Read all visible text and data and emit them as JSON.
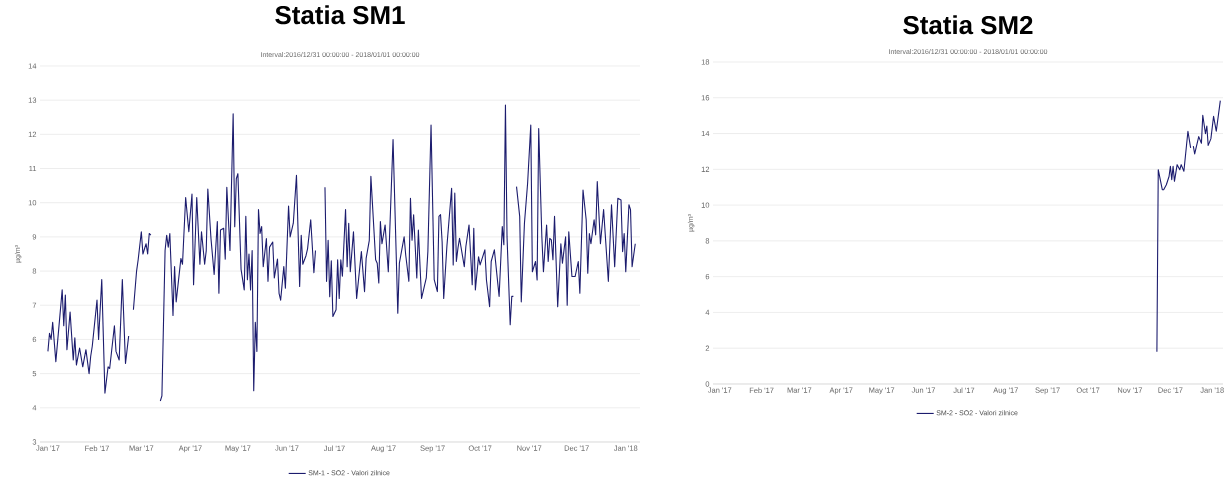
{
  "chart_data": [
    {
      "type": "line",
      "title": "Statia SM1",
      "subtitle": "Interval:2016/12/31 00:00:00 - 2018/01/01 00:00:00",
      "ylabel": "µg/m³",
      "xlim": [
        "2016-12-27",
        "2018-01-10"
      ],
      "ylim": [
        3,
        14
      ],
      "yticks": [
        3,
        4,
        5,
        6,
        7,
        8,
        9,
        10,
        11,
        12,
        13,
        14
      ],
      "xticks": [
        {
          "value": "2017-01-01",
          "label": "Jan '17"
        },
        {
          "value": "2017-02-01",
          "label": "Feb '17"
        },
        {
          "value": "2017-03-01",
          "label": "Mar '17"
        },
        {
          "value": "2017-04-01",
          "label": "Apr '17"
        },
        {
          "value": "2017-05-01",
          "label": "May '17"
        },
        {
          "value": "2017-06-01",
          "label": "Jun '17"
        },
        {
          "value": "2017-07-01",
          "label": "Jul '17"
        },
        {
          "value": "2017-08-01",
          "label": "Aug '17"
        },
        {
          "value": "2017-09-01",
          "label": "Sep '17"
        },
        {
          "value": "2017-10-01",
          "label": "Oct '17"
        },
        {
          "value": "2017-11-01",
          "label": "Nov '17"
        },
        {
          "value": "2017-12-01",
          "label": "Dec '17"
        },
        {
          "value": "2018-01-01",
          "label": "Jan '18"
        }
      ],
      "grid": "y",
      "legend": "bottom",
      "x": [
        "2017-01-01",
        "2017-01-02",
        "2017-01-03",
        "2017-01-04",
        "2017-01-06",
        "2017-01-10",
        "2017-01-11",
        "2017-01-12",
        "2017-01-13",
        "2017-01-15",
        "2017-01-17",
        "2017-01-18",
        "2017-01-19",
        "2017-01-21",
        "2017-01-23",
        "2017-01-25",
        "2017-01-27",
        "2017-01-28",
        "2017-01-29",
        "2017-02-01",
        "2017-02-02",
        "2017-02-04",
        "2017-02-06",
        "2017-02-08",
        "2017-02-09",
        "2017-02-12",
        "2017-02-13",
        "2017-02-15",
        "2017-02-17",
        "2017-02-19",
        "2017-02-21",
        "2017-02-22",
        "2017-02-24",
        "2017-02-26",
        "2017-02-27",
        "2017-03-01",
        "2017-03-02",
        "2017-03-04",
        "2017-03-05",
        "2017-03-06",
        "2017-03-07",
        "2017-03-08",
        "2017-03-13",
        "2017-03-14",
        "2017-03-16",
        "2017-03-17",
        "2017-03-18",
        "2017-03-19",
        "2017-03-21",
        "2017-03-22",
        "2017-03-23",
        "2017-03-26",
        "2017-03-27",
        "2017-03-29",
        "2017-03-31",
        "2017-04-02",
        "2017-04-03",
        "2017-04-05",
        "2017-04-07",
        "2017-04-08",
        "2017-04-10",
        "2017-04-11",
        "2017-04-12",
        "2017-04-14",
        "2017-04-16",
        "2017-04-18",
        "2017-04-19",
        "2017-04-20",
        "2017-04-22",
        "2017-04-23",
        "2017-04-24",
        "2017-04-26",
        "2017-04-28",
        "2017-04-29",
        "2017-04-30",
        "2017-05-01",
        "2017-05-03",
        "2017-05-05",
        "2017-05-06",
        "2017-05-07",
        "2017-05-08",
        "2017-05-09",
        "2017-05-10",
        "2017-05-11",
        "2017-05-12",
        "2017-05-13",
        "2017-05-14",
        "2017-05-15",
        "2017-05-16",
        "2017-05-17",
        "2017-05-19",
        "2017-05-20",
        "2017-05-21",
        "2017-05-23",
        "2017-05-24",
        "2017-05-26",
        "2017-05-27",
        "2017-05-28",
        "2017-05-30",
        "2017-05-31",
        "2017-06-02",
        "2017-06-03",
        "2017-06-05",
        "2017-06-07",
        "2017-06-09",
        "2017-06-10",
        "2017-06-11",
        "2017-06-13",
        "2017-06-14",
        "2017-06-16",
        "2017-06-18",
        "2017-06-19",
        "2017-06-20",
        "2017-06-25",
        "2017-06-26",
        "2017-06-27",
        "2017-06-28",
        "2017-06-29",
        "2017-06-30",
        "2017-07-02",
        "2017-07-03",
        "2017-07-04",
        "2017-07-05",
        "2017-07-06",
        "2017-07-08",
        "2017-07-09",
        "2017-07-10",
        "2017-07-11",
        "2017-07-13",
        "2017-07-15",
        "2017-07-18",
        "2017-07-20",
        "2017-07-21",
        "2017-07-23",
        "2017-07-24",
        "2017-07-27",
        "2017-07-28",
        "2017-07-29",
        "2017-07-30",
        "2017-07-31",
        "2017-08-02",
        "2017-08-04",
        "2017-08-07",
        "2017-08-10",
        "2017-08-11",
        "2017-08-14",
        "2017-08-15",
        "2017-08-17",
        "2017-08-18",
        "2017-08-19",
        "2017-08-20",
        "2017-08-22",
        "2017-08-23",
        "2017-08-25",
        "2017-08-28",
        "2017-08-29",
        "2017-08-31",
        "2017-09-02",
        "2017-09-04",
        "2017-09-05",
        "2017-09-06",
        "2017-09-07",
        "2017-09-08",
        "2017-09-10",
        "2017-09-13",
        "2017-09-14",
        "2017-09-15",
        "2017-09-16",
        "2017-09-17",
        "2017-09-18",
        "2017-09-21",
        "2017-09-22",
        "2017-09-24",
        "2017-09-26",
        "2017-09-27",
        "2017-09-28",
        "2017-09-30",
        "2017-10-01",
        "2017-10-04",
        "2017-10-05",
        "2017-10-07",
        "2017-10-08",
        "2017-10-10",
        "2017-10-13",
        "2017-10-15",
        "2017-10-16",
        "2017-10-17",
        "2017-10-18",
        "2017-10-20",
        "2017-10-21",
        "2017-10-22",
        "2017-10-23",
        "2017-10-24",
        "2017-10-26",
        "2017-10-27",
        "2017-10-29",
        "2017-10-31",
        "2017-11-02",
        "2017-11-03",
        "2017-11-05",
        "2017-11-06",
        "2017-11-07",
        "2017-11-09",
        "2017-11-10",
        "2017-11-12",
        "2017-11-13",
        "2017-11-14",
        "2017-11-15",
        "2017-11-16",
        "2017-11-17",
        "2017-11-19",
        "2017-11-21",
        "2017-11-22",
        "2017-11-24",
        "2017-11-25",
        "2017-11-26",
        "2017-11-28",
        "2017-11-30",
        "2017-12-02",
        "2017-12-03",
        "2017-12-05",
        "2017-12-07",
        "2017-12-08",
        "2017-12-09",
        "2017-12-10",
        "2017-12-12",
        "2017-12-13",
        "2017-12-14",
        "2017-12-16",
        "2017-12-18",
        "2017-12-21",
        "2017-12-23",
        "2017-12-25",
        "2017-12-27",
        "2017-12-29",
        "2017-12-30",
        "2017-12-31",
        "2018-01-01",
        "2018-01-03",
        "2018-01-04",
        "2018-01-05",
        "2018-01-07"
      ],
      "series": [
        {
          "name": "SM-1 - SO2 - Valori zilnice",
          "color": "#1c1c6e",
          "values": [
            5.65,
            6.18,
            6.0,
            6.5,
            5.35,
            7.45,
            6.4,
            7.3,
            5.7,
            6.8,
            5.4,
            6.05,
            5.25,
            5.75,
            5.2,
            5.7,
            5.0,
            5.5,
            5.8,
            7.15,
            6.0,
            7.75,
            4.43,
            5.2,
            5.15,
            6.4,
            5.65,
            5.4,
            7.75,
            5.3,
            6.1,
            null,
            6.87,
            8.0,
            8.33,
            9.15,
            8.5,
            8.8,
            8.5,
            9.1,
            9.05,
            null,
            4.2,
            4.35,
            8.6,
            9.05,
            8.7,
            9.1,
            6.7,
            8.13,
            7.1,
            8.37,
            8.2,
            10.15,
            9.15,
            10.25,
            7.6,
            10.15,
            8.2,
            9.15,
            8.2,
            8.6,
            10.4,
            8.95,
            7.9,
            9.45,
            7.35,
            9.2,
            9.25,
            8.35,
            10.45,
            8.6,
            12.6,
            9.3,
            10.7,
            10.85,
            8.05,
            7.45,
            9.6,
            7.75,
            8.5,
            7.45,
            8.6,
            4.5,
            6.5,
            5.65,
            9.8,
            9.1,
            9.3,
            8.13,
            8.95,
            7.7,
            8.7,
            8.85,
            7.8,
            8.35,
            7.35,
            7.15,
            8.13,
            7.5,
            9.9,
            9.0,
            9.4,
            10.8,
            7.55,
            9.05,
            8.2,
            8.45,
            8.65,
            9.5,
            7.95,
            8.6,
            null,
            10.45,
            7.7,
            8.9,
            7.25,
            8.3,
            6.67,
            6.87,
            8.33,
            7.2,
            8.33,
            7.85,
            9.8,
            8.13,
            9.4,
            7.98,
            9.15,
            7.2,
            8.57,
            7.4,
            8.37,
            8.9,
            10.77,
            8.33,
            8.23,
            7.65,
            9.45,
            8.8,
            9.35,
            7.98,
            11.85,
            6.77,
            8.23,
            9.0,
            8.47,
            7.7,
            10.13,
            8.9,
            9.65,
            7.8,
            9.2,
            7.2,
            7.8,
            8.57,
            12.27,
            7.75,
            7.4,
            9.6,
            9.65,
            8.86,
            7.2,
            8.72,
            10.42,
            8.18,
            10.28,
            8.28,
            8.67,
            8.96,
            8.13,
            8.72,
            9.35,
            7.6,
            9.25,
            7.45,
            8.42,
            8.18,
            8.62,
            7.74,
            6.96,
            8.28,
            8.62,
            7.26,
            9.3,
            8.77,
            12.86,
            9.0,
            6.43,
            7.26,
            7.26,
            null,
            10.47,
            9.6,
            7.1,
            9.4,
            10.57,
            12.27,
            7.98,
            8.28,
            7.74,
            12.17,
            9.0,
            7.98,
            9.35,
            8.28,
            8.96,
            8.91,
            8.33,
            9.6,
            6.96,
            8.8,
            8.23,
            9.0,
            7.0,
            9.15,
            7.84,
            7.84,
            8.28,
            7.35,
            10.37,
            9.5,
            7.94,
            9.1,
            8.8,
            9.5,
            9.06,
            10.62,
            8.8,
            9.8,
            7.7,
            9.94,
            8.13,
            10.13,
            10.08,
            8.57,
            9.1,
            7.98,
            9.94,
            9.8,
            8.13,
            8.8
          ]
        }
      ]
    },
    {
      "type": "line",
      "title": "Statia SM2",
      "subtitle": "Interval:2016/12/31 00:00:00 - 2018/01/01 00:00:00",
      "ylabel": "µg/m³",
      "xlim": [
        "2016-12-27",
        "2018-01-09"
      ],
      "ylim": [
        0,
        18
      ],
      "yticks": [
        0,
        2,
        4,
        6,
        8,
        10,
        12,
        14,
        16,
        18
      ],
      "xticks": [
        {
          "value": "2017-01-01",
          "label": "Jan '17"
        },
        {
          "value": "2017-02-01",
          "label": "Feb '17"
        },
        {
          "value": "2017-03-01",
          "label": "Mar '17"
        },
        {
          "value": "2017-04-01",
          "label": "Apr '17"
        },
        {
          "value": "2017-05-01",
          "label": "May '17"
        },
        {
          "value": "2017-06-01",
          "label": "Jun '17"
        },
        {
          "value": "2017-07-01",
          "label": "Jul '17"
        },
        {
          "value": "2017-08-01",
          "label": "Aug '17"
        },
        {
          "value": "2017-09-01",
          "label": "Sep '17"
        },
        {
          "value": "2017-10-01",
          "label": "Oct '17"
        },
        {
          "value": "2017-11-01",
          "label": "Nov '17"
        },
        {
          "value": "2017-12-01",
          "label": "Dec '17"
        },
        {
          "value": "2018-01-01",
          "label": "Jan '18"
        }
      ],
      "grid": "y",
      "legend": "bottom",
      "x": [
        "2017-11-21",
        "2017-11-22",
        "2017-11-23",
        "2017-11-25",
        "2017-11-26",
        "2017-11-28",
        "2017-11-30",
        "2017-12-01",
        "2017-12-02",
        "2017-12-03",
        "2017-12-04",
        "2017-12-06",
        "2017-12-08",
        "2017-12-09",
        "2017-12-11",
        "2017-12-14",
        "2017-12-16",
        "2017-12-17",
        "2017-12-18",
        "2017-12-19",
        "2017-12-22",
        "2017-12-24",
        "2017-12-25",
        "2017-12-27",
        "2017-12-28",
        "2017-12-29",
        "2017-12-31",
        "2018-01-02",
        "2018-01-04",
        "2018-01-07"
      ],
      "series": [
        {
          "name": "SM-2 - SO2 - Valori zilnice",
          "color": "#1c1c6e",
          "values": [
            1.8,
            11.98,
            11.6,
            10.86,
            10.86,
            11.14,
            11.6,
            12.17,
            11.42,
            12.17,
            11.33,
            12.26,
            11.98,
            12.26,
            11.89,
            14.13,
            13.2,
            null,
            13.3,
            12.86,
            13.83,
            13.46,
            15.02,
            13.99,
            14.42,
            13.34,
            13.7,
            14.96,
            14.13,
            15.84
          ]
        }
      ]
    }
  ]
}
